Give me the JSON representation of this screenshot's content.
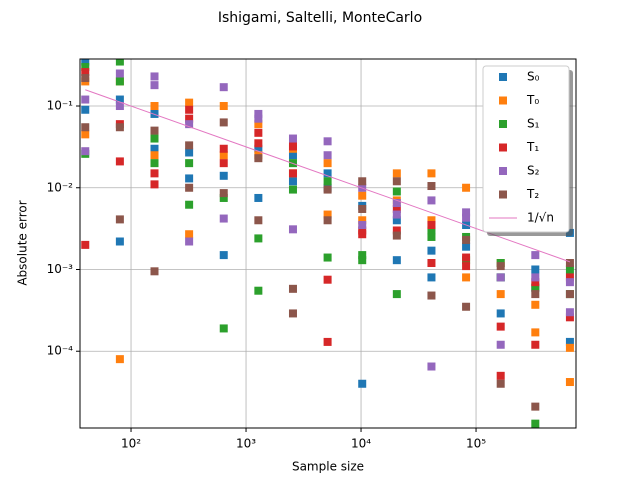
{
  "chart_data": {
    "type": "scatter",
    "title": "Ishigami, Saltelli, MonteCarlo",
    "x_label": "Sample size",
    "y_label": "Absolute error",
    "log_x": true,
    "log_y": true,
    "grid": true,
    "legend_position": "upper right",
    "xlim": [
      36,
      740000
    ],
    "ylim": [
      1.15e-05,
      0.376
    ],
    "xticks": [
      {
        "value": 100,
        "label": "10²"
      },
      {
        "value": 1000,
        "label": "10³"
      },
      {
        "value": 10000,
        "label": "10⁴"
      },
      {
        "value": 100000,
        "label": "10⁵"
      }
    ],
    "yticks": [
      {
        "value": 0.0001,
        "label": "10⁻⁴"
      },
      {
        "value": 0.001,
        "label": "10⁻³"
      },
      {
        "value": 0.01,
        "label": "10⁻²"
      },
      {
        "value": 0.1,
        "label": "10⁻¹"
      }
    ],
    "x": [
      40,
      40,
      80,
      80,
      160,
      160,
      320,
      320,
      640,
      640,
      1280,
      1280,
      2560,
      2560,
      5120,
      5120,
      10240,
      10240,
      20480,
      20480,
      40960,
      40960,
      81920,
      81920,
      163840,
      163840,
      327680,
      327680,
      655360,
      655360
    ],
    "series": [
      {
        "name": "S₀",
        "color": "#1f77b4",
        "values": [
          0.35,
          0.09,
          0.0022,
          0.12,
          0.03,
          0.08,
          0.027,
          0.013,
          0.0015,
          0.014,
          0.0075,
          0.03,
          0.012,
          0.025,
          0.015,
          0.01,
          4e-05,
          0.006,
          0.0013,
          0.004,
          0.0008,
          0.0017,
          0.0019,
          0.0035,
          0.00029,
          0.0008,
          0.001,
          0.0006,
          0.00013,
          0.0028
        ]
      },
      {
        "name": "T₀",
        "color": "#ff7f0e",
        "values": [
          0.2,
          0.045,
          8e-05,
          0.2,
          0.025,
          0.1,
          0.0027,
          0.11,
          0.1,
          0.025,
          0.06,
          0.025,
          0.03,
          0.015,
          0.0047,
          0.02,
          0.008,
          0.004,
          0.015,
          0.007,
          0.015,
          0.004,
          0.01,
          0.0008,
          0.0005,
          0.0012,
          0.00017,
          0.00037,
          4.2e-05,
          0.00011
        ]
      },
      {
        "name": "S₁",
        "color": "#2ca02c",
        "values": [
          0.026,
          0.3,
          0.35,
          0.2,
          0.02,
          0.04,
          0.0062,
          0.02,
          0.00019,
          0.0075,
          0.00055,
          0.0024,
          0.0095,
          0.02,
          0.0014,
          0.012,
          0.0013,
          0.0015,
          0.0005,
          0.009,
          0.003,
          0.0025,
          0.0025,
          0.0013,
          0.0012,
          0.0008,
          1.3e-05,
          0.0006,
          0.0005,
          0.001
        ]
      },
      {
        "name": "T₁",
        "color": "#d62728",
        "values": [
          0.26,
          0.002,
          0.021,
          0.06,
          0.011,
          0.015,
          0.09,
          0.07,
          0.03,
          0.02,
          0.047,
          0.035,
          0.032,
          0.015,
          0.00075,
          0.00013,
          0.0027,
          0.003,
          0.003,
          0.0055,
          0.0012,
          0.0035,
          0.0011,
          0.0014,
          5e-05,
          0.0002,
          0.00012,
          0.0007,
          0.0008,
          0.00026
        ]
      },
      {
        "name": "S₂",
        "color": "#9467bd",
        "values": [
          0.028,
          0.12,
          0.25,
          0.1,
          0.23,
          0.18,
          0.0022,
          0.06,
          0.17,
          0.0042,
          0.08,
          0.07,
          0.04,
          0.0031,
          0.037,
          0.025,
          0.0035,
          0.01,
          0.0047,
          0.0065,
          6.5e-05,
          0.007,
          0.005,
          0.0043,
          0.00012,
          0.0008,
          0.0008,
          0.0015,
          0.0003,
          0.0007
        ]
      },
      {
        "name": "T₂",
        "color": "#8c564b",
        "values": [
          0.055,
          0.22,
          0.0041,
          0.055,
          0.00095,
          0.05,
          0.01,
          0.033,
          0.0086,
          0.063,
          0.023,
          0.004,
          0.00058,
          0.00029,
          0.004,
          0.0095,
          0.0055,
          0.012,
          0.0026,
          0.012,
          0.00048,
          0.0105,
          0.00035,
          0.0023,
          4e-05,
          0.0011,
          2.1e-05,
          0.0005,
          0.0012,
          0.0005
        ]
      }
    ],
    "reference_line": {
      "name": "1/√n",
      "color": "#e377c2",
      "x": [
        40,
        655360
      ],
      "values": [
        0.158,
        0.00124
      ]
    }
  }
}
